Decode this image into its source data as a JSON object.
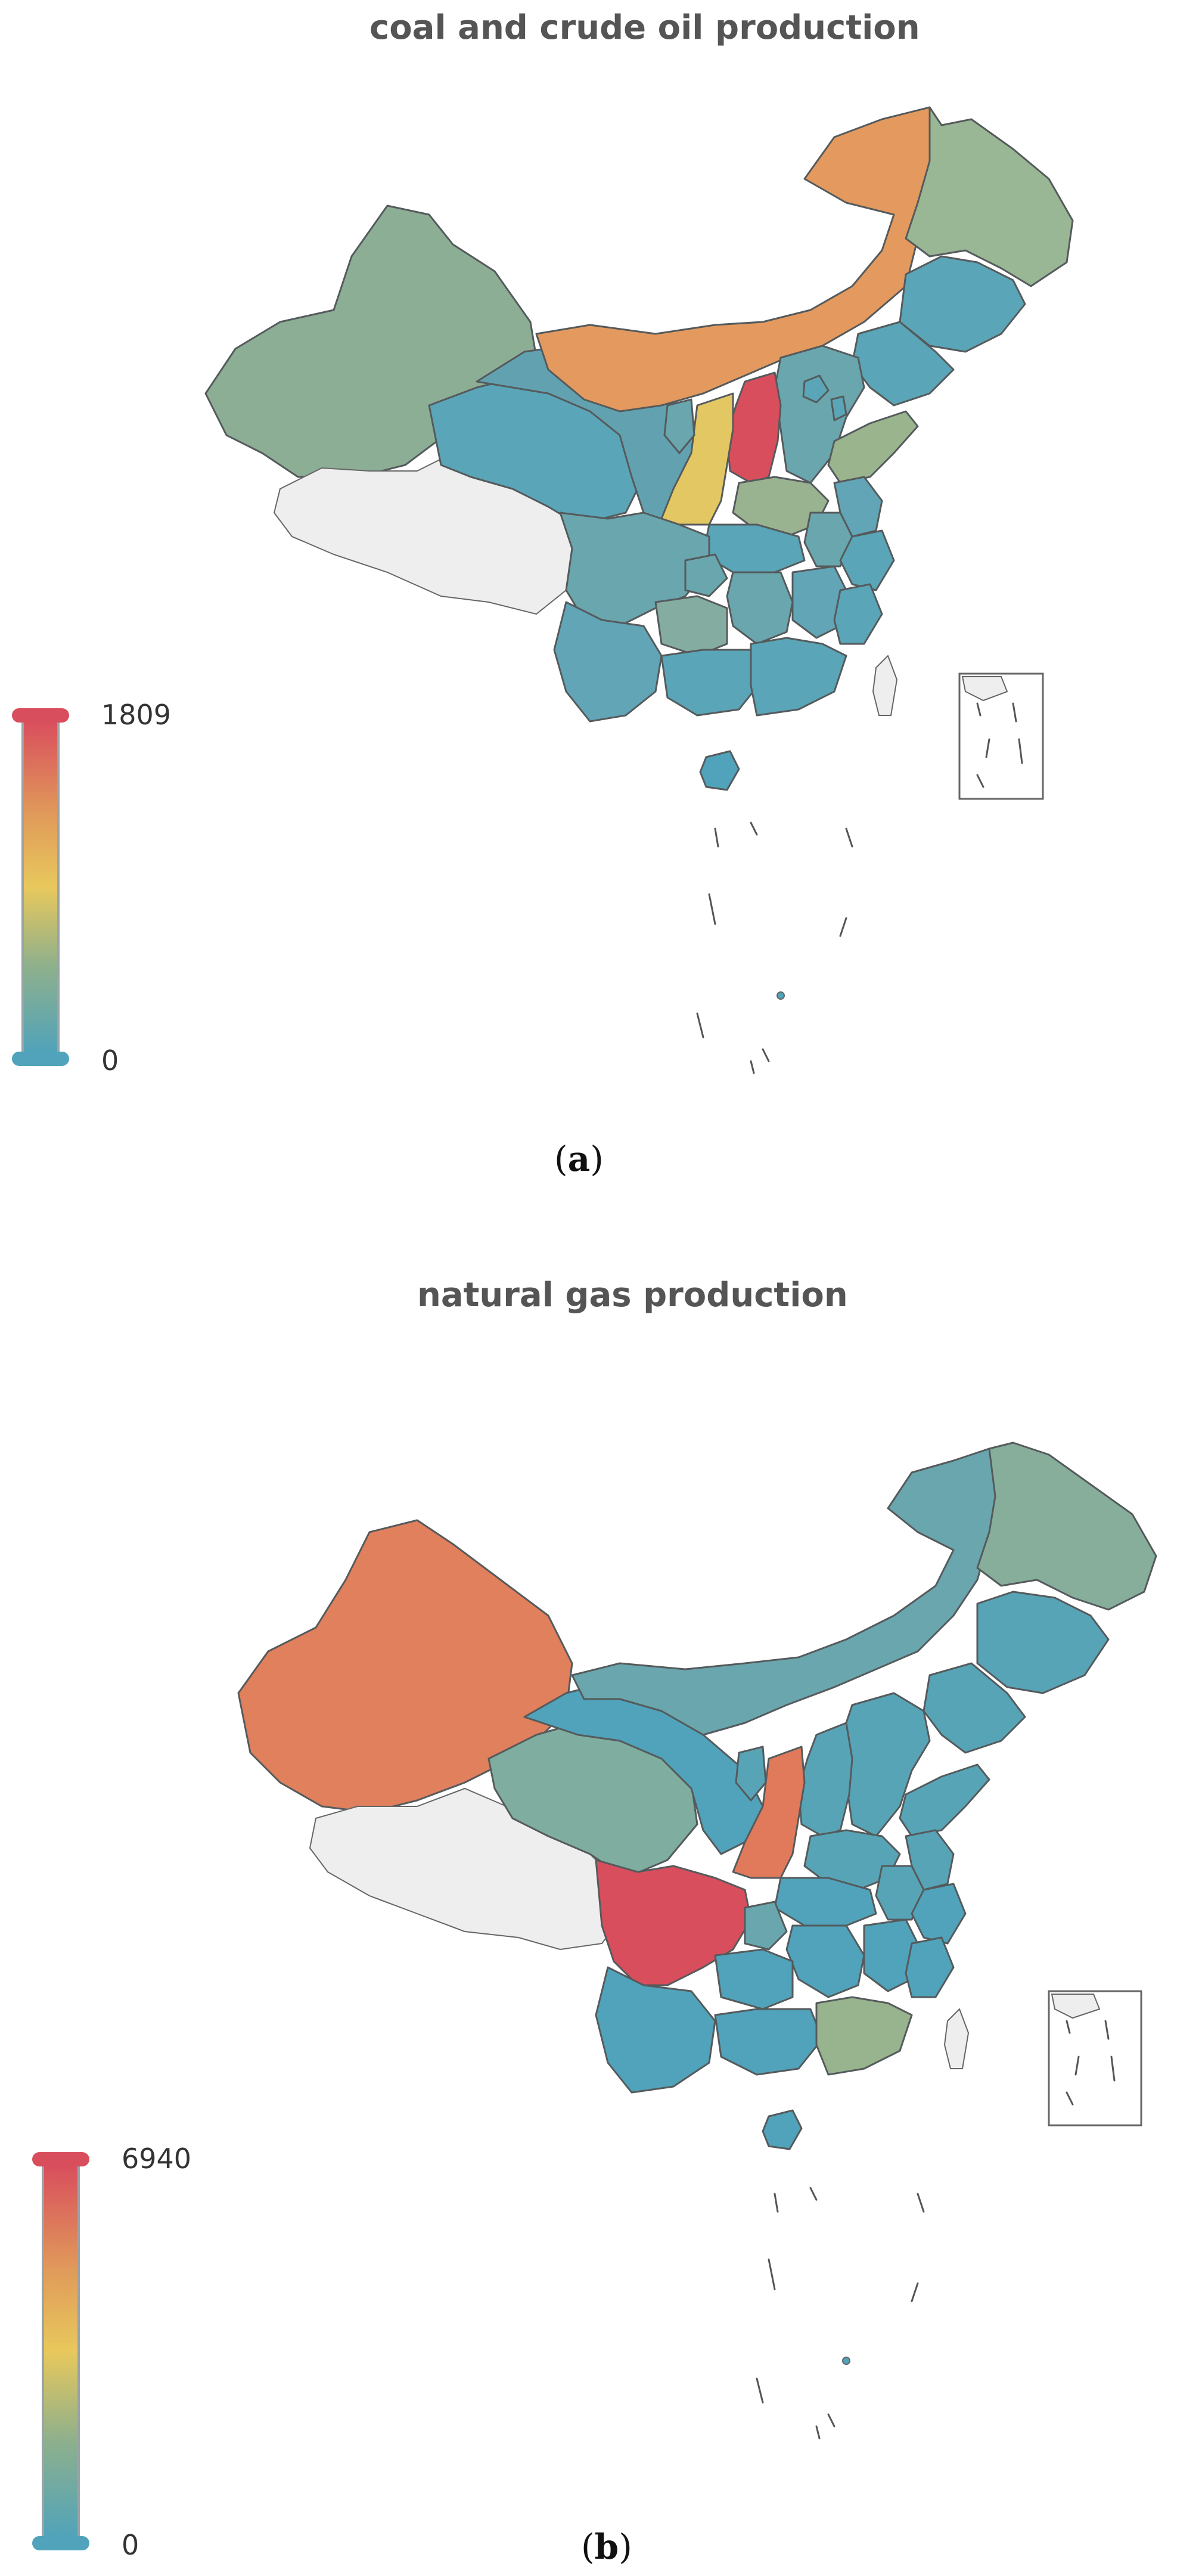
{
  "chart_data": [
    {
      "type": "choropleth",
      "title": "coal and crude oil production",
      "caption_letter": "a",
      "visual_map": {
        "min": 0,
        "max": 1809,
        "min_label": "0",
        "max_label": "1809"
      },
      "colors": [
        "#50a3ba",
        "#8eb08c",
        "#e8c85c",
        "#e09a5a",
        "#d94e5d"
      ],
      "no_data_color": "#eeeeee"
    },
    {
      "type": "choropleth",
      "title": "natural gas production",
      "caption_letter": "b",
      "visual_map": {
        "min": 0,
        "max": 6940,
        "min_label": "0",
        "max_label": "6940"
      },
      "colors": [
        "#50a3ba",
        "#8eb08c",
        "#e8c85c",
        "#e09a5a",
        "#d94e5d"
      ],
      "no_data_color": "#eeeeee"
    }
  ]
}
